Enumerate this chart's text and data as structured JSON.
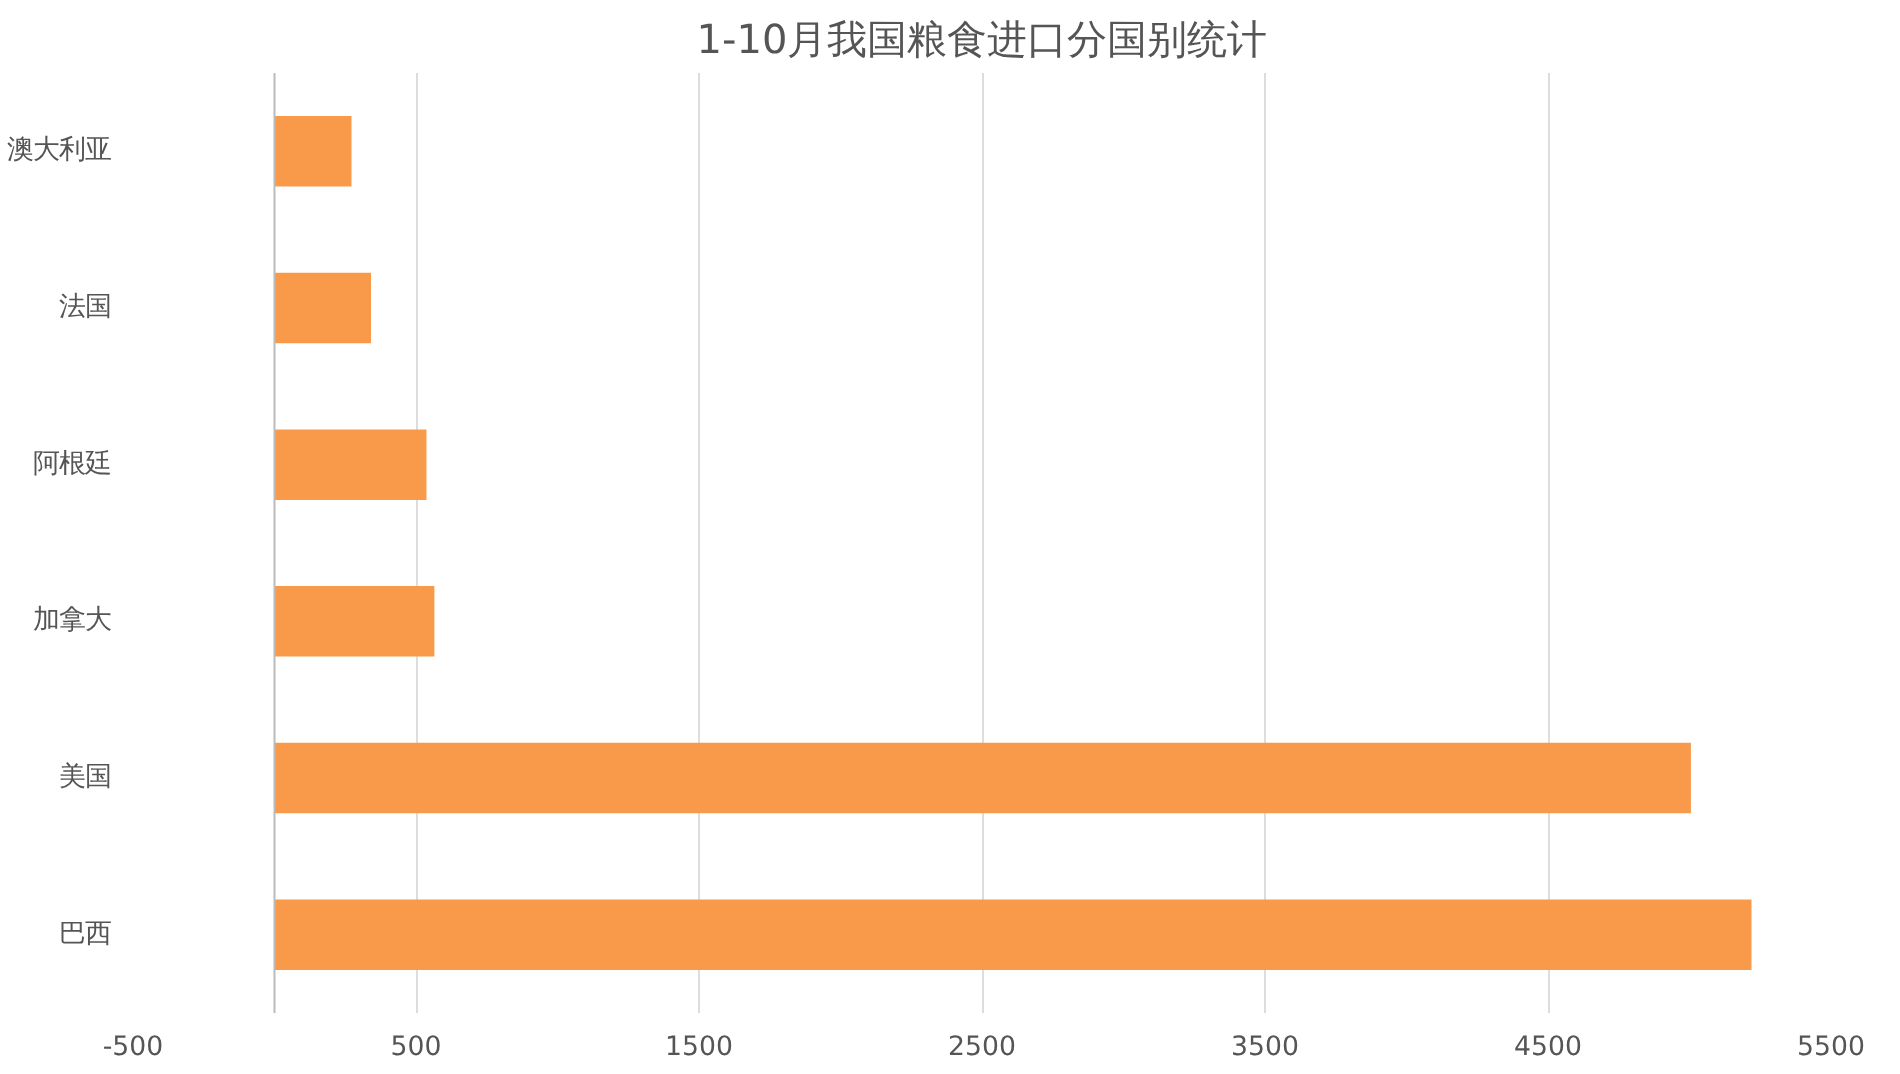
{
  "chart_data": {
    "type": "bar",
    "orientation": "horizontal",
    "title": "1-10月我国粮食进口分国别统计",
    "categories": [
      "澳大利亚",
      "法国",
      "阿根廷",
      "加拿大",
      "美国",
      "巴西"
    ],
    "values": [
      272,
      341,
      537,
      565,
      5005,
      5219
    ],
    "color": "#f99a4a",
    "xlim": [
      -500,
      5500
    ],
    "xticks": [
      {
        "value": -500,
        "label": "-500"
      },
      500,
      1500,
      2500,
      3500,
      4500,
      5500
    ],
    "grid": "x"
  }
}
